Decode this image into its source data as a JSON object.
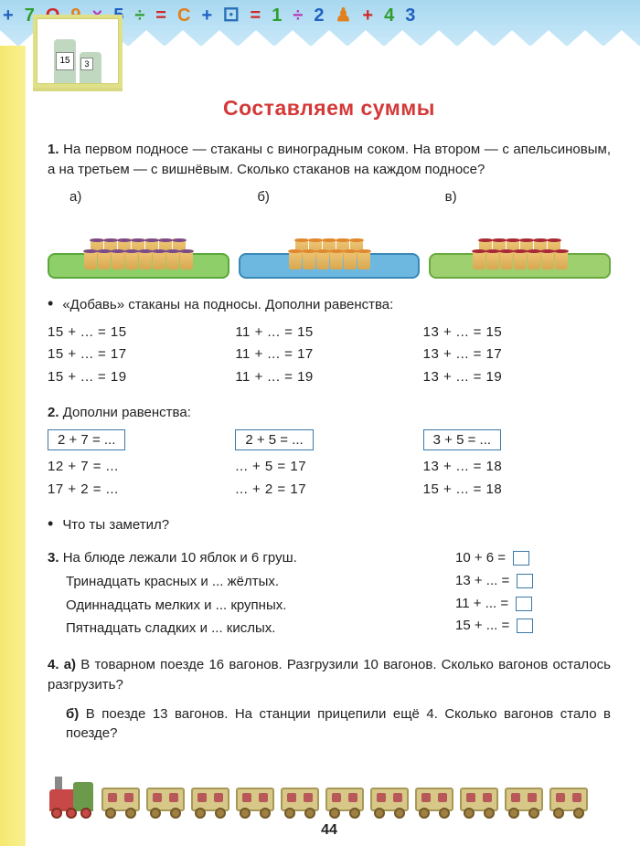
{
  "title": "Составляем суммы",
  "page_number": "44",
  "corner": {
    "n1": "15",
    "n2": "3"
  },
  "banner_chars": "+ 7 О 9 × 5 ÷ = С + ⚀ = 1 ÷ 2 ♟ + 4 3",
  "colors": {
    "title": "#d43838",
    "banner_bg": "#a8d8f0",
    "left_strip": "#f5e870",
    "box_border": "#3a78a8"
  },
  "task1": {
    "num": "1.",
    "text": "На первом подносе — стаканы с виноградным соком. На втором — с апельсиновым, а на третьем — с вишнёвым. Сколько стаканов на каждом подносе?",
    "label_a": "а)",
    "label_b": "б)",
    "label_c": "в)",
    "bullet": "«Добавь» стаканы на подносы. Дополни равенства:",
    "col1": [
      "15 + ... = 15",
      "15 + ... = 17",
      "15 + ... = 19"
    ],
    "col2": [
      "11 + ... = 15",
      "11 + ... = 17",
      "11 + ... = 19"
    ],
    "col3": [
      "13 + ... = 15",
      "13 + ... = 17",
      "13 + ... = 19"
    ]
  },
  "task2": {
    "num": "2.",
    "text": "Дополни равенства:",
    "box1": "2 + 7 = ...",
    "box2": "2 + 5 = ...",
    "box3": "3 + 5 = ...",
    "col1": [
      "12 + 7 = ...",
      "17 + 2 = ..."
    ],
    "col2": [
      "... + 5 = 17",
      "... + 2 = 17"
    ],
    "col3": [
      "13 + ... = 18",
      "15 + ... = 18"
    ],
    "bullet": "Что ты заметил?"
  },
  "task3": {
    "num": "3.",
    "lines": [
      "На блюде лежали 10 яблок и 6 груш.",
      "Тринадцать красных и ... жёлтых.",
      "Одиннадцать мелких и ... крупных.",
      "Пятнадцать сладких и ... кислых."
    ],
    "eqs": [
      "10 + 6  =",
      "13 + ... =",
      "11 + ... =",
      "15 + ... ="
    ]
  },
  "task4": {
    "num": "4.",
    "a_label": "а)",
    "a_text": "В товарном поезде 16 вагонов. Разгрузили 10 вагонов. Сколько вагонов осталось разгрузить?",
    "b_label": "б)",
    "b_text": "В поезде 13 вагонов. На станции прицепили ещё 4. Сколько вагонов стало в поезде?"
  },
  "train": {
    "wagon_count": 11
  }
}
